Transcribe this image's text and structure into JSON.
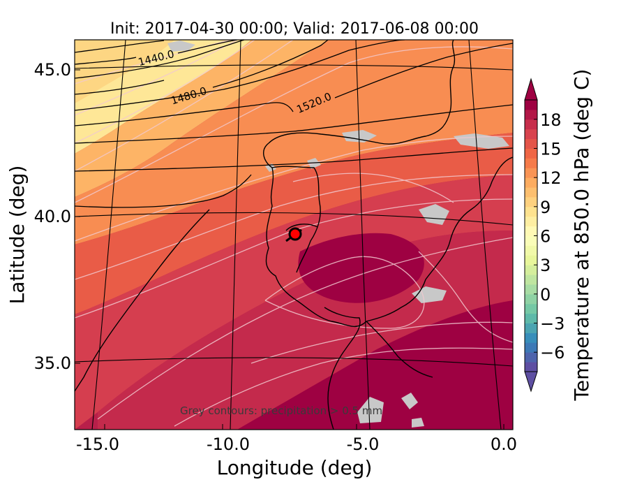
{
  "title": "Init: 2017-04-30 00:00; Valid: 2017-06-08 00:00",
  "xlabel": "Longitude (deg)",
  "ylabel": "Latitude (deg)",
  "colorbar_label": "Temperature at 850.0 hPa (deg C)",
  "annotation": "Grey contours: precipitation > 0.5 mm",
  "chart_data": {
    "type": "heatmap",
    "title": "Init: 2017-04-30 00:00; Valid: 2017-06-08 00:00",
    "xlabel": "Longitude (deg)",
    "ylabel": "Latitude (deg)",
    "xlim": [
      -16.0,
      0.2
    ],
    "ylim": [
      32.7,
      46.1
    ],
    "x_ticks": [
      "-15.0",
      "-10.0",
      "-5.0",
      "0.0"
    ],
    "y_ticks": [
      "45.0",
      "40.0",
      "35.0"
    ],
    "colorbar": {
      "label": "Temperature at 850.0 hPa (deg C)",
      "ticks": [
        "18",
        "15",
        "12",
        "9",
        "6",
        "3",
        "0",
        "−3",
        "−6"
      ],
      "range": [
        -8,
        20
      ],
      "step": 1,
      "colormap": "Spectral_r",
      "extend": "both"
    },
    "geopotential_contour_labels": [
      "1440.0",
      "1480.0",
      "1520.0"
    ],
    "marker": {
      "lon": -7.6,
      "lat": 39.3,
      "color": "#ff0000"
    },
    "annotation": "Grey contours: precipitation > 0.5 mm"
  }
}
